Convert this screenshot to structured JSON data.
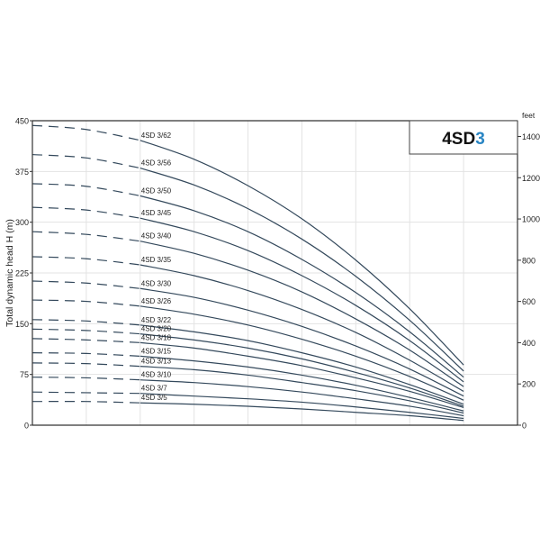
{
  "chart_data": {
    "type": "line",
    "title": "4SD3",
    "title_parts": {
      "prefix": "4SD",
      "suffix": "3"
    },
    "ylabel": "Total dynamic head H (m)",
    "y2label": "feet",
    "ylim": [
      0,
      450
    ],
    "yticks": [
      0,
      75,
      150,
      225,
      300,
      375,
      450
    ],
    "y2lim": [
      0,
      1476
    ],
    "y2ticks": [
      0,
      200,
      400,
      600,
      800,
      1000,
      1200,
      1400
    ],
    "xlim": [
      0,
      9
    ],
    "x": [
      0,
      1,
      2,
      3,
      4,
      5,
      6,
      7,
      8
    ],
    "dashed_until_x": 2,
    "grid": true,
    "colors": {
      "curve": "#34495c",
      "accent": "#2a86c4",
      "grid": "#e3e3e3",
      "axis": "#333333"
    },
    "series": [
      {
        "name": "4SD 3/62",
        "values": [
          443,
          437,
          421,
          393,
          354,
          305,
          244,
          172,
          89
        ]
      },
      {
        "name": "4SD 3/56",
        "values": [
          400,
          395,
          380,
          355,
          320,
          275,
          220,
          155,
          80
        ]
      },
      {
        "name": "4SD 3/50",
        "values": [
          357,
          353,
          339,
          317,
          286,
          245,
          196,
          138,
          71
        ]
      },
      {
        "name": "4SD 3/45",
        "values": [
          322,
          318,
          306,
          286,
          258,
          221,
          177,
          125,
          64
        ]
      },
      {
        "name": "4SD 3/40",
        "values": [
          286,
          282,
          272,
          254,
          229,
          197,
          157,
          111,
          57
        ]
      },
      {
        "name": "4SD 3/35",
        "values": [
          249,
          246,
          237,
          221,
          199,
          171,
          137,
          96,
          50
        ]
      },
      {
        "name": "4SD 3/30",
        "values": [
          213,
          210,
          202,
          189,
          170,
          146,
          117,
          83,
          43
        ]
      },
      {
        "name": "4SD 3/26",
        "values": [
          185,
          183,
          176,
          164,
          148,
          127,
          102,
          72,
          37
        ]
      },
      {
        "name": "4SD 3/22",
        "values": [
          156,
          154,
          148,
          138,
          125,
          107,
          86,
          60,
          31
        ]
      },
      {
        "name": "4SD 3/20",
        "values": [
          142,
          140,
          135,
          126,
          114,
          98,
          78,
          55,
          28
        ]
      },
      {
        "name": "4SD 3/18",
        "values": [
          128,
          126,
          122,
          114,
          102,
          88,
          70,
          50,
          26
        ]
      },
      {
        "name": "4SD 3/15",
        "values": [
          107,
          106,
          102,
          95,
          86,
          74,
          59,
          41,
          21
        ]
      },
      {
        "name": "4SD 3/13",
        "values": [
          92,
          91,
          87,
          82,
          74,
          63,
          51,
          36,
          18
        ]
      },
      {
        "name": "4SD 3/10",
        "values": [
          71,
          70,
          67,
          63,
          57,
          49,
          39,
          28,
          14
        ]
      },
      {
        "name": "4SD 3/7",
        "values": [
          49,
          48,
          47,
          43,
          39,
          34,
          27,
          19,
          10
        ]
      },
      {
        "name": "4SD 3/5",
        "values": [
          35,
          35,
          33,
          31,
          28,
          24,
          19,
          14,
          7
        ]
      }
    ]
  }
}
